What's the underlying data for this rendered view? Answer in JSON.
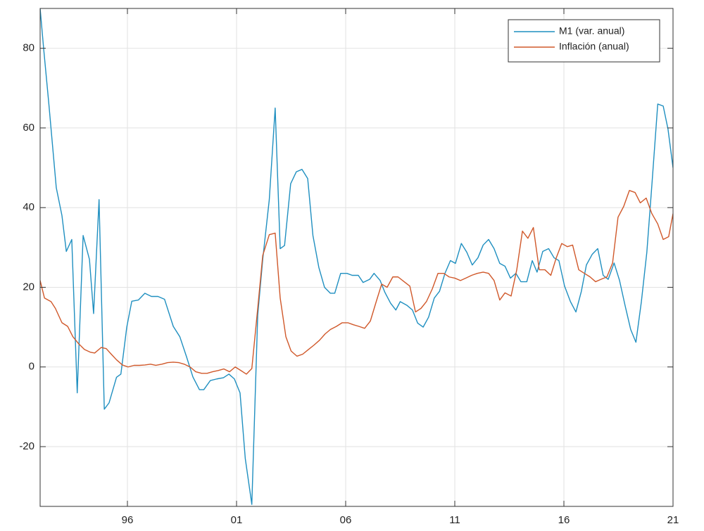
{
  "chart_data": {
    "type": "line",
    "xlim": [
      1992,
      2021
    ],
    "ylim": [
      -35,
      90
    ],
    "xticks": [
      {
        "value": 1996,
        "label": "96"
      },
      {
        "value": 2001,
        "label": "01"
      },
      {
        "value": 2006,
        "label": "06"
      },
      {
        "value": 2011,
        "label": "11"
      },
      {
        "value": 2016,
        "label": "16"
      },
      {
        "value": 2021,
        "label": "21"
      }
    ],
    "yticks": [
      -20,
      0,
      20,
      40,
      60,
      80
    ],
    "grid": true,
    "legend": "upper right",
    "series": [
      {
        "name": "M1 (var. anual)",
        "color": "#1f8fc0",
        "x": [
          1992,
          1992.16,
          1992.4,
          1992.74,
          1993.0,
          1993.2,
          1993.45,
          1993.7,
          1993.97,
          1994.26,
          1994.45,
          1994.7,
          1994.94,
          1995.16,
          1995.5,
          1995.7,
          1995.97,
          1996.2,
          1996.5,
          1996.8,
          1997.1,
          1997.4,
          1997.7,
          1998.1,
          1998.4,
          1998.7,
          1999.0,
          1999.3,
          1999.5,
          1999.8,
          2000.1,
          2000.4,
          2000.65,
          2000.9,
          2001.16,
          2001.4,
          2001.7,
          2001.97,
          2002.2,
          2002.5,
          2002.77,
          2003.0,
          2003.2,
          2003.48,
          2003.74,
          2004.0,
          2004.26,
          2004.5,
          2004.77,
          2005.03,
          2005.3,
          2005.5,
          2005.77,
          2006.06,
          2006.3,
          2006.58,
          2006.8,
          2007.1,
          2007.3,
          2007.58,
          2007.8,
          2008.06,
          2008.3,
          2008.5,
          2008.8,
          2009.06,
          2009.3,
          2009.55,
          2009.8,
          2010.06,
          2010.3,
          2010.55,
          2010.8,
          2011.03,
          2011.3,
          2011.55,
          2011.8,
          2012.06,
          2012.3,
          2012.55,
          2012.8,
          2013.06,
          2013.3,
          2013.55,
          2013.8,
          2014.03,
          2014.3,
          2014.55,
          2014.77,
          2015.03,
          2015.3,
          2015.55,
          2015.77,
          2016.03,
          2016.3,
          2016.55,
          2016.8,
          2017.03,
          2017.3,
          2017.55,
          2017.8,
          2018.03,
          2018.3,
          2018.55,
          2018.8,
          2019.06,
          2019.3,
          2019.55,
          2019.8,
          2020.03,
          2020.3,
          2020.55,
          2020.77,
          2021.0
        ],
        "values": [
          90,
          80,
          66,
          45,
          38,
          29,
          32,
          -6.5,
          33,
          27,
          13.4,
          42,
          -10.6,
          -9,
          -2.6,
          -1.8,
          10,
          16.5,
          16.8,
          18.5,
          17.7,
          17.7,
          17,
          10.2,
          7.6,
          2.7,
          -2.5,
          -5.7,
          -5.7,
          -3.4,
          -3,
          -2.7,
          -1.8,
          -3,
          -6.5,
          -23,
          -34.5,
          13,
          27,
          42,
          65,
          29.7,
          30.5,
          46,
          49,
          49.6,
          47.3,
          33,
          25,
          20,
          18.5,
          18.5,
          23.5,
          23.5,
          23,
          23,
          21.2,
          22,
          23.5,
          21.7,
          18.7,
          16,
          14.3,
          16.4,
          15.5,
          14.3,
          11,
          10,
          12.5,
          17.3,
          19,
          23.5,
          26.7,
          26,
          31,
          28.8,
          25.6,
          27.4,
          30.6,
          32,
          29.7,
          26,
          25.3,
          22.3,
          23.5,
          21.4,
          21.4,
          26.7,
          23.8,
          29,
          29.7,
          27.4,
          26.7,
          20.3,
          16.4,
          13.8,
          19,
          25.6,
          28.3,
          29.7,
          23,
          22,
          26.1,
          21.7,
          15.5,
          9.4,
          6.2,
          16.4,
          28.8,
          45.6,
          66,
          65.5,
          59.7,
          50
        ]
      },
      {
        "name": "Inflación (anual)",
        "color": "#d0582a",
        "x": [
          1992,
          1992.2,
          1992.5,
          1992.7,
          1993,
          1993.26,
          1993.5,
          1993.77,
          1994.03,
          1994.3,
          1994.5,
          1994.8,
          1995.03,
          1995.26,
          1995.5,
          1995.77,
          1996.03,
          1996.3,
          1996.55,
          1996.8,
          1997.06,
          1997.3,
          1997.58,
          1997.84,
          1998.1,
          1998.35,
          1998.6,
          1998.87,
          1999.13,
          1999.4,
          1999.65,
          1999.9,
          2000.16,
          2000.42,
          2000.68,
          2000.94,
          2001.2,
          2001.45,
          2001.7,
          2001.97,
          2002.2,
          2002.5,
          2002.77,
          2003.0,
          2003.26,
          2003.5,
          2003.77,
          2004.03,
          2004.3,
          2004.55,
          2004.8,
          2005.06,
          2005.3,
          2005.58,
          2005.84,
          2006.1,
          2006.35,
          2006.6,
          2006.87,
          2007.13,
          2007.4,
          2007.65,
          2007.9,
          2008.16,
          2008.4,
          2008.68,
          2008.94,
          2009.2,
          2009.45,
          2009.7,
          2009.97,
          2010.23,
          2010.5,
          2010.74,
          2011.0,
          2011.26,
          2011.5,
          2011.77,
          2012.03,
          2012.3,
          2012.55,
          2012.8,
          2013.06,
          2013.3,
          2013.58,
          2013.84,
          2014.1,
          2014.35,
          2014.6,
          2014.87,
          2015.13,
          2015.4,
          2015.65,
          2015.9,
          2016.16,
          2016.4,
          2016.68,
          2016.94,
          2017.2,
          2017.45,
          2017.7,
          2017.97,
          2018.23,
          2018.48,
          2018.74,
          2019.0,
          2019.26,
          2019.5,
          2019.77,
          2020.03,
          2020.3,
          2020.55,
          2020.8,
          2021
        ],
        "values": [
          21.7,
          17.3,
          16.4,
          14.7,
          11.1,
          10.2,
          7.6,
          5.8,
          4.4,
          3.7,
          3.5,
          4.9,
          4.6,
          3.2,
          1.8,
          0.5,
          0,
          0.4,
          0.4,
          0.5,
          0.7,
          0.4,
          0.7,
          1.1,
          1.2,
          1.1,
          0.7,
          0,
          -1.2,
          -1.6,
          -1.6,
          -1.2,
          -0.9,
          -0.5,
          -1.2,
          0,
          -0.9,
          -1.8,
          -0.4,
          14.7,
          28,
          33.2,
          33.6,
          17.3,
          7.6,
          4,
          2.7,
          3.2,
          4.4,
          5.5,
          6.7,
          8.3,
          9.4,
          10.2,
          11.1,
          11.1,
          10.6,
          10.2,
          9.7,
          11.5,
          16.4,
          20.8,
          20,
          22.6,
          22.6,
          21.4,
          20.3,
          13.8,
          14.7,
          16.4,
          19.6,
          23.5,
          23.5,
          22.6,
          22.3,
          21.7,
          22.3,
          23,
          23.5,
          23.8,
          23.5,
          21.7,
          16.8,
          18.6,
          17.8,
          24.4,
          34.1,
          32.3,
          35,
          24.4,
          24.4,
          23,
          27.4,
          31,
          30.2,
          30.6,
          24.4,
          23.5,
          22.6,
          21.4,
          22,
          22.6,
          26.1,
          37.6,
          40.3,
          44.3,
          43.8,
          41.2,
          42.4,
          38.5,
          35.9,
          32,
          32.7,
          38.5
        ]
      }
    ]
  }
}
